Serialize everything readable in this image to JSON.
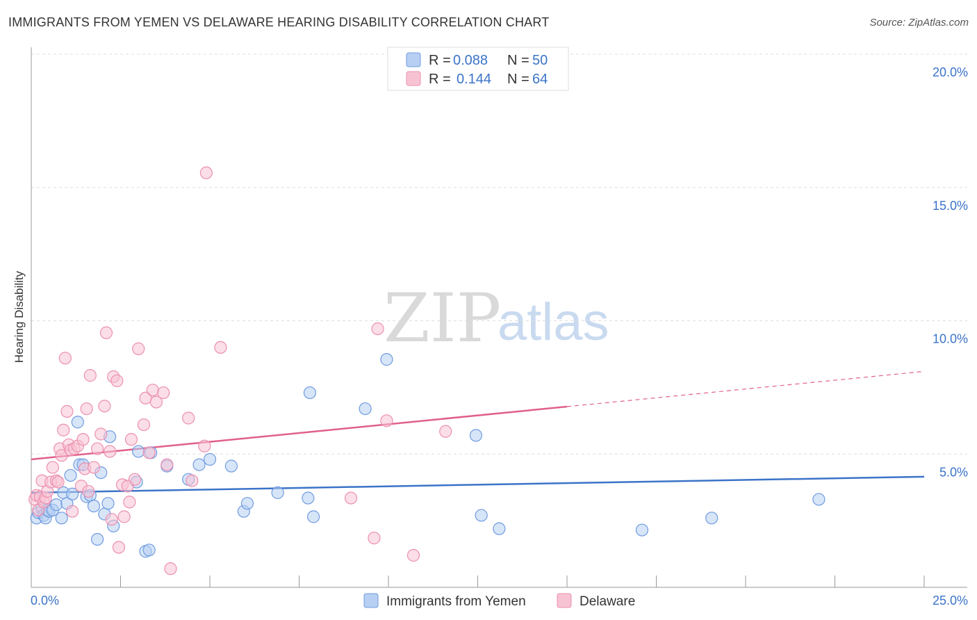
{
  "title": "IMMIGRANTS FROM YEMEN VS DELAWARE HEARING DISABILITY CORRELATION CHART",
  "source": "Source: ZipAtlas.com",
  "watermark": {
    "part1": "ZIP",
    "part2": "atlas"
  },
  "colors": {
    "blue": "#3b73c8",
    "blue_fill": "#b7cff2",
    "blue_stroke": "#6f9be0",
    "pink": "#e0608a",
    "pink_fill": "#f7c3d3",
    "pink_stroke": "#ec8fae",
    "grid": "#dddddd"
  },
  "legend": {
    "series1": {
      "r_label": "R = ",
      "r_value": "0.088",
      "n_label": "N = ",
      "n_value": "50"
    },
    "series2": {
      "r_label": "R = ",
      "r_value": "0.144",
      "n_label": "N = ",
      "n_value": "64"
    }
  },
  "chart_data": {
    "type": "scatter",
    "xlabel": "",
    "ylabel": "Hearing Disability",
    "xlim": [
      0,
      25
    ],
    "ylim": [
      0,
      20
    ],
    "x_tick_labels": {
      "min": "0.0%",
      "max": "25.0%"
    },
    "y_ticks": [
      {
        "value": 5,
        "label": "5.0%"
      },
      {
        "value": 10,
        "label": "10.0%"
      },
      {
        "value": 15,
        "label": "15.0%"
      },
      {
        "value": 20,
        "label": "20.0%"
      }
    ],
    "grid": true,
    "series": [
      {
        "name": "Immigrants from Yemen",
        "color": "blue",
        "trend": {
          "x0": 0,
          "y0": 3.55,
          "x1": 25,
          "y1": 4.15,
          "dashed_from": null
        },
        "points": [
          [
            0.15,
            2.6
          ],
          [
            0.2,
            2.8
          ],
          [
            0.3,
            3.0
          ],
          [
            0.35,
            2.7
          ],
          [
            0.4,
            2.6
          ],
          [
            0.45,
            2.9
          ],
          [
            0.5,
            2.85
          ],
          [
            0.6,
            2.9
          ],
          [
            0.7,
            3.1
          ],
          [
            0.85,
            2.6
          ],
          [
            0.9,
            3.55
          ],
          [
            1.0,
            3.15
          ],
          [
            1.1,
            4.2
          ],
          [
            1.15,
            3.5
          ],
          [
            1.3,
            6.2
          ],
          [
            1.35,
            4.6
          ],
          [
            1.45,
            4.6
          ],
          [
            1.55,
            3.4
          ],
          [
            1.65,
            3.45
          ],
          [
            1.75,
            3.05
          ],
          [
            1.85,
            1.8
          ],
          [
            1.95,
            4.3
          ],
          [
            2.05,
            2.75
          ],
          [
            2.15,
            3.15
          ],
          [
            2.2,
            5.65
          ],
          [
            2.3,
            2.3
          ],
          [
            2.95,
            3.95
          ],
          [
            3.0,
            5.1
          ],
          [
            3.2,
            1.35
          ],
          [
            3.3,
            1.4
          ],
          [
            3.35,
            5.05
          ],
          [
            3.8,
            4.55
          ],
          [
            4.4,
            4.05
          ],
          [
            4.7,
            4.6
          ],
          [
            5.0,
            4.8
          ],
          [
            5.6,
            4.55
          ],
          [
            5.95,
            2.85
          ],
          [
            6.05,
            3.15
          ],
          [
            6.9,
            3.55
          ],
          [
            7.75,
            3.35
          ],
          [
            7.8,
            7.3
          ],
          [
            7.9,
            2.65
          ],
          [
            9.35,
            6.7
          ],
          [
            9.95,
            8.55
          ],
          [
            12.45,
            5.7
          ],
          [
            12.6,
            2.7
          ],
          [
            13.1,
            2.2
          ],
          [
            17.1,
            2.15
          ],
          [
            19.05,
            2.6
          ],
          [
            22.05,
            3.3
          ]
        ]
      },
      {
        "name": "Delaware",
        "color": "pink",
        "trend": {
          "x0": 0,
          "y0": 4.8,
          "x1": 25,
          "y1": 8.1,
          "solid_until": 15
        },
        "points": [
          [
            0.1,
            3.3
          ],
          [
            0.15,
            3.45
          ],
          [
            0.2,
            2.9
          ],
          [
            0.25,
            3.4
          ],
          [
            0.3,
            4.0
          ],
          [
            0.35,
            3.2
          ],
          [
            0.4,
            3.35
          ],
          [
            0.45,
            3.6
          ],
          [
            0.55,
            3.95
          ],
          [
            0.6,
            4.5
          ],
          [
            0.7,
            4.0
          ],
          [
            0.75,
            3.95
          ],
          [
            0.8,
            5.2
          ],
          [
            0.85,
            4.95
          ],
          [
            0.9,
            5.9
          ],
          [
            0.95,
            8.6
          ],
          [
            1.0,
            6.6
          ],
          [
            1.05,
            5.35
          ],
          [
            1.1,
            5.15
          ],
          [
            1.15,
            2.85
          ],
          [
            1.2,
            5.2
          ],
          [
            1.3,
            5.3
          ],
          [
            1.4,
            3.8
          ],
          [
            1.45,
            5.55
          ],
          [
            1.5,
            4.45
          ],
          [
            1.55,
            6.7
          ],
          [
            1.6,
            3.6
          ],
          [
            1.65,
            7.95
          ],
          [
            1.75,
            4.5
          ],
          [
            1.85,
            5.2
          ],
          [
            1.95,
            5.75
          ],
          [
            2.05,
            6.8
          ],
          [
            2.1,
            9.55
          ],
          [
            2.2,
            5.1
          ],
          [
            2.25,
            2.55
          ],
          [
            2.3,
            7.9
          ],
          [
            2.4,
            7.75
          ],
          [
            2.45,
            1.5
          ],
          [
            2.55,
            3.85
          ],
          [
            2.6,
            2.65
          ],
          [
            2.7,
            3.8
          ],
          [
            2.75,
            3.2
          ],
          [
            2.8,
            5.55
          ],
          [
            2.9,
            4.05
          ],
          [
            3.0,
            8.95
          ],
          [
            3.15,
            6.1
          ],
          [
            3.2,
            7.1
          ],
          [
            3.3,
            5.05
          ],
          [
            3.4,
            7.4
          ],
          [
            3.5,
            6.95
          ],
          [
            3.7,
            7.3
          ],
          [
            3.8,
            4.6
          ],
          [
            3.9,
            0.7
          ],
          [
            4.4,
            6.35
          ],
          [
            4.5,
            4.0
          ],
          [
            4.85,
            5.3
          ],
          [
            4.9,
            15.55
          ],
          [
            5.3,
            9.0
          ],
          [
            8.95,
            3.35
          ],
          [
            9.6,
            1.85
          ],
          [
            9.7,
            9.7
          ],
          [
            9.95,
            6.25
          ],
          [
            10.7,
            1.2
          ],
          [
            11.6,
            5.85
          ]
        ]
      }
    ]
  }
}
